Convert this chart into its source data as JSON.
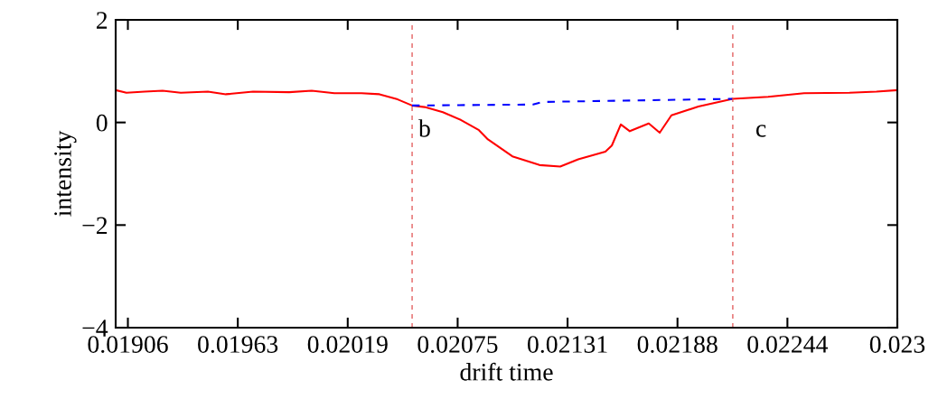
{
  "chart_data": {
    "type": "line",
    "xlabel": "drift time",
    "ylabel": "intensity",
    "xlim": [
      0.019,
      0.023
    ],
    "ylim": [
      -4,
      2
    ],
    "xticks": [
      {
        "value": 0.0190625,
        "label": "0.01906"
      },
      {
        "value": 0.019625,
        "label": "0.01963"
      },
      {
        "value": 0.0201875,
        "label": "0.02019"
      },
      {
        "value": 0.02075,
        "label": "0.02075"
      },
      {
        "value": 0.0213125,
        "label": "0.02131"
      },
      {
        "value": 0.021875,
        "label": "0.02188"
      },
      {
        "value": 0.0224375,
        "label": "0.02244"
      },
      {
        "value": 0.023,
        "label": "0.023"
      }
    ],
    "yticks": [
      {
        "value": 2,
        "label": "2"
      },
      {
        "value": 0,
        "label": "0"
      },
      {
        "value": -2,
        "label": "−2"
      },
      {
        "value": -4,
        "label": "−4"
      }
    ],
    "grid": false,
    "legend": false,
    "series": [
      {
        "color": "#ff0000",
        "line_style": "solid",
        "x": [
          0.019,
          0.019055,
          0.019148,
          0.01924,
          0.019333,
          0.019472,
          0.019564,
          0.019703,
          0.019888,
          0.020003,
          0.020119,
          0.020258,
          0.02035,
          0.020443,
          0.020517,
          0.020581,
          0.020674,
          0.020766,
          0.020859,
          0.020905,
          0.02103,
          0.021169,
          0.021275,
          0.021367,
          0.021506,
          0.021539,
          0.021585,
          0.021631,
          0.021728,
          0.021784,
          0.021844,
          0.021982,
          0.022158,
          0.022339,
          0.022523,
          0.022755,
          0.022893,
          0.023
        ],
        "values": [
          0.63,
          0.58,
          0.6,
          0.62,
          0.58,
          0.6,
          0.55,
          0.6,
          0.59,
          0.62,
          0.57,
          0.57,
          0.55,
          0.45,
          0.33,
          0.3,
          0.2,
          0.05,
          -0.15,
          -0.33,
          -0.66,
          -0.83,
          -0.86,
          -0.72,
          -0.57,
          -0.45,
          -0.04,
          -0.17,
          -0.02,
          -0.2,
          0.14,
          0.31,
          0.46,
          0.5,
          0.57,
          0.58,
          0.6,
          0.63
        ]
      },
      {
        "color": "#0000ff",
        "line_style": "dashed",
        "x": [
          0.020517,
          0.021136,
          0.021183,
          0.022158
        ],
        "values": [
          0.33,
          0.35,
          0.4,
          0.46
        ]
      }
    ],
    "ref_lines": [
      {
        "axis": "x",
        "value": 0.020517,
        "color": "#e05050",
        "line_style": "dashed",
        "label": "b"
      },
      {
        "axis": "x",
        "value": 0.022158,
        "color": "#e05050",
        "line_style": "dashed",
        "label": "c"
      }
    ]
  }
}
